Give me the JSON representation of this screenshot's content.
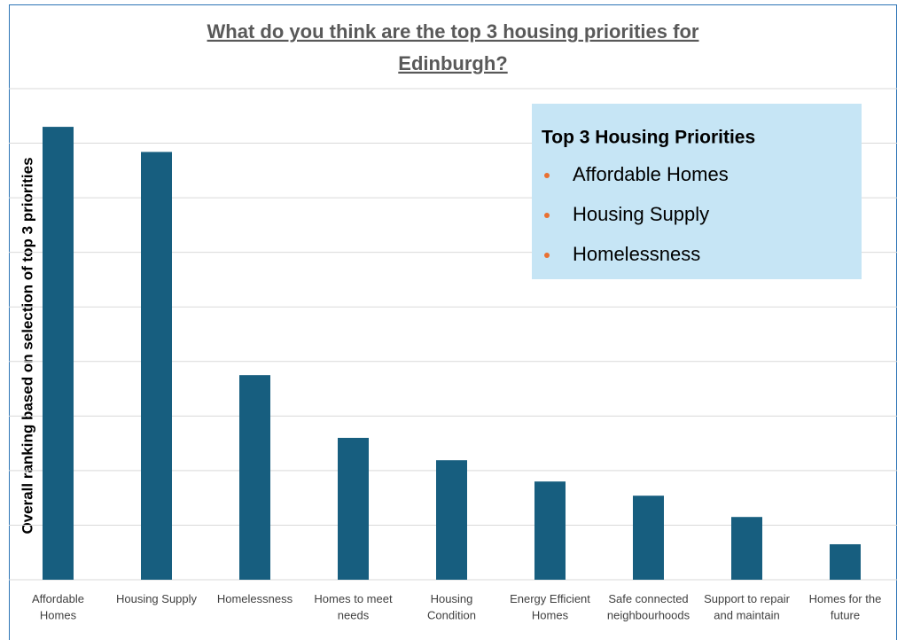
{
  "chart_data": {
    "type": "bar",
    "title": [
      "What do you think are the top 3 housing priorities for",
      "Edinburgh?"
    ],
    "y_label": "Overall ranking based on selection of top 3 priorities",
    "categories": [
      "Affordable Homes",
      "Housing Supply",
      "Homelessness",
      "Homes to meet needs",
      "Housing Condition",
      "Energy Efficient Homes",
      "Safe connected neighbourhoods",
      "Support to repair and maintain",
      "Homes for the future"
    ],
    "values": [
      8.3,
      7.84,
      3.75,
      2.6,
      2.19,
      1.8,
      1.54,
      1.15,
      0.65
    ],
    "color": "#175e7f",
    "ylim": [
      0,
      9
    ],
    "yticks": [
      0,
      1,
      2,
      3,
      4,
      5,
      6,
      7,
      8,
      9
    ],
    "grid": true,
    "annotation": {
      "title": "Top 3 Housing Priorities",
      "items": [
        "Affordable Homes",
        "Housing Supply",
        "Homelessness"
      ]
    }
  }
}
